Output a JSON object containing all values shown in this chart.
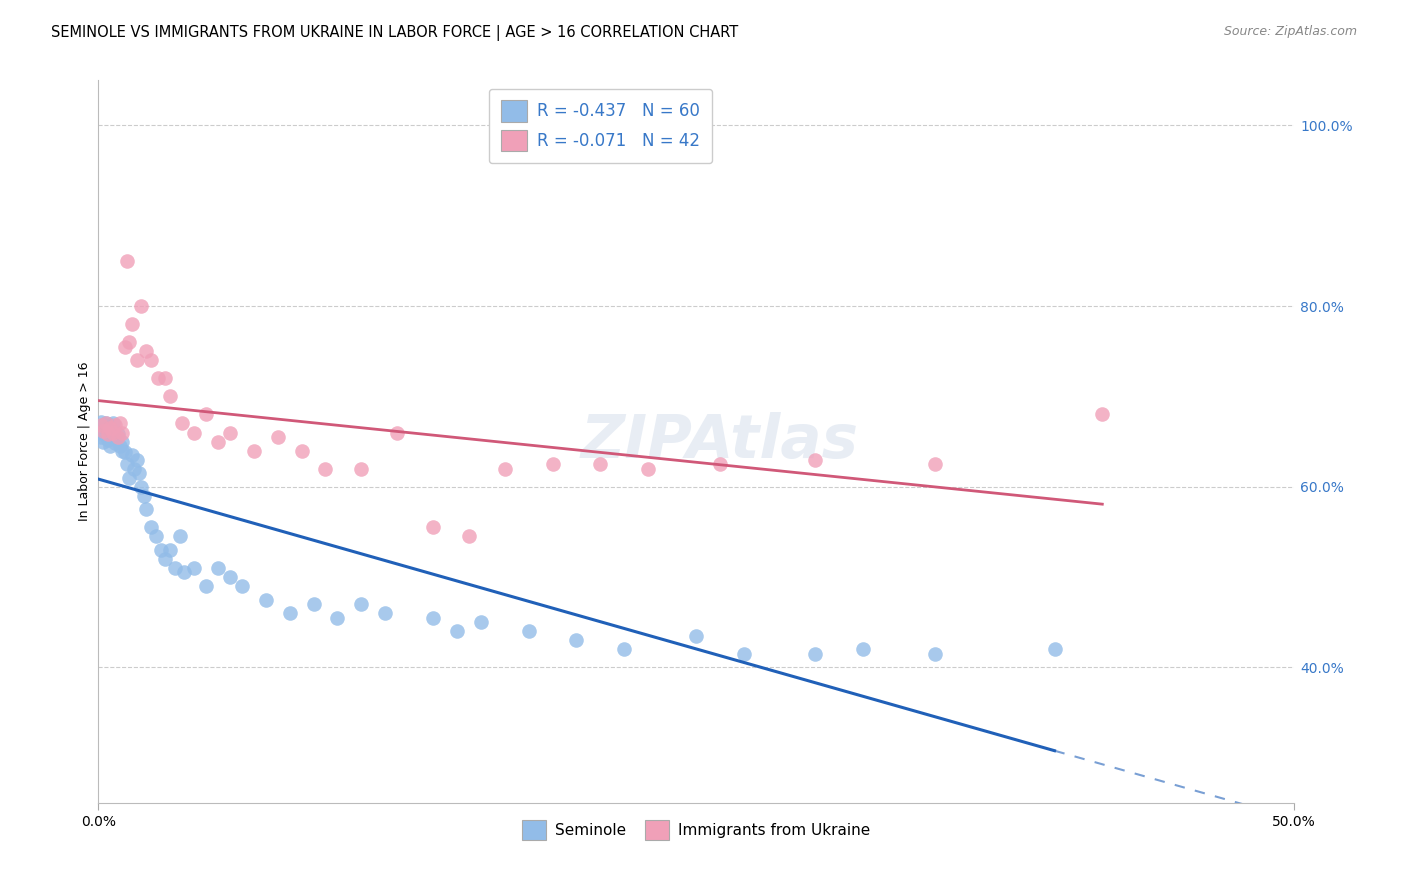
{
  "title": "SEMINOLE VS IMMIGRANTS FROM UKRAINE IN LABOR FORCE | AGE > 16 CORRELATION CHART",
  "source": "Source: ZipAtlas.com",
  "ylabel": "In Labor Force | Age > 16",
  "legend_label1": "R = -0.437   N = 60",
  "legend_label2": "R = -0.071   N = 42",
  "legend_series1": "Seminole",
  "legend_series2": "Immigrants from Ukraine",
  "color_blue": "#92bce8",
  "color_blue_line": "#2060b8",
  "color_pink": "#f0a0b8",
  "color_pink_line": "#d05878",
  "color_blue_text": "#3878c8",
  "watermark": "ZIPAtlas",
  "seminole_x": [
    0.0,
    0.001,
    0.001,
    0.002,
    0.002,
    0.003,
    0.003,
    0.004,
    0.004,
    0.005,
    0.005,
    0.006,
    0.006,
    0.007,
    0.007,
    0.008,
    0.009,
    0.01,
    0.01,
    0.011,
    0.012,
    0.013,
    0.014,
    0.015,
    0.016,
    0.017,
    0.018,
    0.019,
    0.02,
    0.022,
    0.024,
    0.026,
    0.028,
    0.03,
    0.032,
    0.034,
    0.036,
    0.04,
    0.045,
    0.05,
    0.055,
    0.06,
    0.07,
    0.08,
    0.09,
    0.1,
    0.11,
    0.12,
    0.14,
    0.15,
    0.16,
    0.18,
    0.2,
    0.22,
    0.25,
    0.27,
    0.3,
    0.32,
    0.35,
    0.4
  ],
  "seminole_y": [
    0.66,
    0.672,
    0.655,
    0.668,
    0.65,
    0.67,
    0.665,
    0.66,
    0.652,
    0.668,
    0.645,
    0.662,
    0.67,
    0.655,
    0.648,
    0.658,
    0.645,
    0.65,
    0.64,
    0.638,
    0.625,
    0.61,
    0.635,
    0.62,
    0.63,
    0.615,
    0.6,
    0.59,
    0.575,
    0.555,
    0.545,
    0.53,
    0.52,
    0.53,
    0.51,
    0.545,
    0.505,
    0.51,
    0.49,
    0.51,
    0.5,
    0.49,
    0.475,
    0.46,
    0.47,
    0.455,
    0.47,
    0.46,
    0.455,
    0.44,
    0.45,
    0.44,
    0.43,
    0.42,
    0.435,
    0.415,
    0.415,
    0.42,
    0.415,
    0.42
  ],
  "ukraine_x": [
    0.001,
    0.002,
    0.003,
    0.004,
    0.005,
    0.006,
    0.007,
    0.008,
    0.009,
    0.01,
    0.011,
    0.012,
    0.013,
    0.014,
    0.016,
    0.018,
    0.02,
    0.022,
    0.025,
    0.028,
    0.03,
    0.035,
    0.04,
    0.045,
    0.05,
    0.055,
    0.065,
    0.075,
    0.085,
    0.095,
    0.11,
    0.125,
    0.14,
    0.155,
    0.17,
    0.19,
    0.21,
    0.23,
    0.26,
    0.3,
    0.35,
    0.42
  ],
  "ukraine_y": [
    0.668,
    0.662,
    0.67,
    0.658,
    0.665,
    0.66,
    0.668,
    0.655,
    0.67,
    0.66,
    0.755,
    0.85,
    0.76,
    0.78,
    0.74,
    0.8,
    0.75,
    0.74,
    0.72,
    0.72,
    0.7,
    0.67,
    0.66,
    0.68,
    0.65,
    0.66,
    0.64,
    0.655,
    0.64,
    0.62,
    0.62,
    0.66,
    0.555,
    0.545,
    0.62,
    0.625,
    0.625,
    0.62,
    0.625,
    0.63,
    0.625,
    0.68
  ],
  "xlim": [
    0.0,
    0.5
  ],
  "ylim": [
    0.25,
    1.05
  ],
  "xtick_positions": [
    0.0,
    0.5
  ],
  "xtick_labels": [
    "0.0%",
    "50.0%"
  ],
  "yticks_right": [
    1.0,
    0.8,
    0.6,
    0.4
  ],
  "ytick_right_labels": [
    "100.0%",
    "80.0%",
    "60.0%",
    "40.0%"
  ],
  "background_color": "#ffffff",
  "grid_color": "#cccccc"
}
